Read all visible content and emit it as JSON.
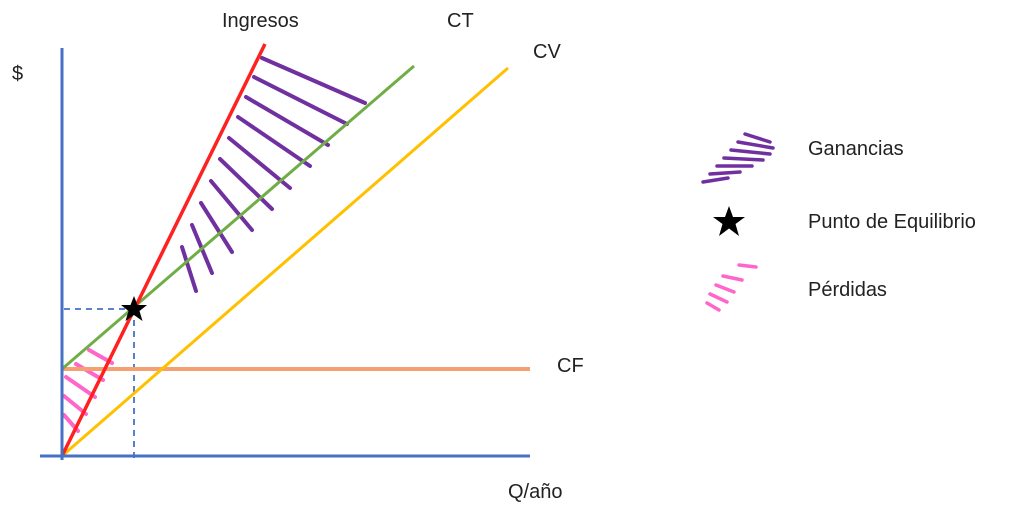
{
  "diagram": {
    "y_axis_label": "$",
    "x_axis_label": "Q/año",
    "line_labels": {
      "revenue": "Ingresos",
      "total_cost": "CT",
      "variable_cost": "CV",
      "fixed_cost": "CF"
    }
  },
  "legend": {
    "items": [
      {
        "icon": "purple-hatch-icon",
        "label": "Ganancias"
      },
      {
        "icon": "star-icon",
        "label": "Punto de Equilibrio"
      },
      {
        "icon": "pink-hatch-icon",
        "label": "Pérdidas"
      }
    ]
  },
  "colors": {
    "axis": "#4472C4",
    "revenue": "#FF2020",
    "total_cost": "#70AD47",
    "variable_cost": "#FFC000",
    "fixed_cost": "#F4A070",
    "profit_hatch": "#7030A0",
    "loss_hatch": "#FF66CC",
    "guide": "#4472C4"
  }
}
